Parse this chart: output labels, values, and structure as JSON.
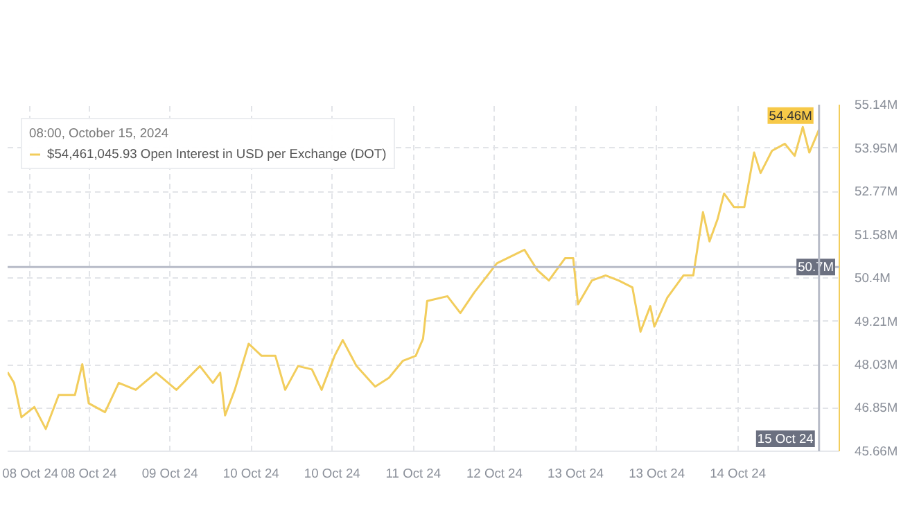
{
  "chart_data": {
    "type": "line",
    "legend_title": "08:00, October 15, 2024",
    "legend": "top left",
    "grid": true,
    "x": [
      "2024-10-08T02:00",
      "2024-10-08T03:23",
      "2024-10-08T04:58",
      "2024-10-08T07:44",
      "2024-10-08T10:11",
      "2024-10-08T12:58",
      "2024-10-08T16:26",
      "2024-10-08T18:01",
      "2024-10-08T19:24",
      "2024-10-08T22:53",
      "2024-10-09T01:50",
      "2024-10-09T05:29",
      "2024-10-09T09:50",
      "2024-10-09T14:11",
      "2024-10-09T19:14",
      "2024-10-09T22:01",
      "2024-10-09T23:35",
      "2024-10-10T00:38",
      "2024-10-10T02:43",
      "2024-10-10T05:41",
      "2024-10-10T08:28",
      "2024-10-10T11:25",
      "2024-10-10T13:31",
      "2024-10-10T16:17",
      "2024-10-10T19:15",
      "2024-10-10T21:20",
      "2024-10-11T00:07",
      "2024-10-11T01:52",
      "2024-10-11T04:49",
      "2024-10-11T08:49",
      "2024-10-11T11:47",
      "2024-10-11T14:44",
      "2024-10-11T17:31",
      "2024-10-11T19:05",
      "2024-10-11T19:58",
      "2024-10-12T00:19",
      "2024-10-12T03:05",
      "2024-10-12T06:03",
      "2024-10-12T10:55",
      "2024-10-12T16:50",
      "2024-10-12T19:37",
      "2024-10-12T22:04",
      "2024-10-13T01:32",
      "2024-10-13T03:17",
      "2024-10-13T04:19",
      "2024-10-13T07:17",
      "2024-10-13T10:14",
      "2024-10-13T13:01",
      "2024-10-13T15:59",
      "2024-10-13T17:43",
      "2024-10-13T19:49",
      "2024-10-13T20:41",
      "2024-10-13T23:28",
      "2024-10-14T02:56",
      "2024-10-14T05:02",
      "2024-10-14T07:07",
      "2024-10-14T08:31",
      "2024-10-14T10:15",
      "2024-10-14T11:38",
      "2024-10-14T13:44",
      "2024-10-14T15:59",
      "2024-10-14T18:05",
      "2024-10-14T19:28",
      "2024-10-14T21:55",
      "2024-10-15T00:41",
      "2024-10-15T02:47",
      "2024-10-15T04:31",
      "2024-10-15T05:55",
      "2024-10-15T08:00"
    ],
    "series": [
      {
        "name": "$54,461,045.93 Open Interest in USD per Exchange (DOT)",
        "color": "#f2cd5c",
        "values": [
          47.82,
          47.53,
          46.59,
          46.87,
          46.27,
          47.2,
          47.2,
          48.04,
          46.97,
          46.73,
          47.53,
          47.34,
          47.81,
          47.34,
          47.99,
          47.53,
          47.81,
          46.64,
          47.34,
          48.6,
          48.27,
          48.27,
          47.34,
          47.99,
          47.9,
          47.34,
          48.27,
          48.7,
          47.99,
          47.43,
          47.67,
          48.13,
          48.27,
          48.74,
          49.77,
          49.9,
          49.44,
          50.0,
          50.8,
          51.17,
          50.61,
          50.33,
          50.94,
          50.94,
          49.68,
          50.33,
          50.47,
          50.33,
          50.14,
          48.93,
          49.63,
          49.07,
          49.86,
          50.47,
          50.47,
          52.2,
          51.4,
          52.01,
          52.71,
          52.34,
          52.34,
          53.83,
          53.27,
          53.88,
          54.07,
          53.74,
          54.53,
          53.83,
          54.46
        ]
      }
    ],
    "xlim": [
      "2024-10-08T02:00",
      "2024-10-15T12:21"
    ],
    "ylim": [
      45.66,
      55.14
    ],
    "xticks": [
      {
        "value": "2024-10-08T06:52",
        "label": "08 Oct 24"
      },
      {
        "value": "2024-10-08T19:24",
        "label": "08 Oct 24"
      },
      {
        "value": "2024-10-09T12:48",
        "label": "09 Oct 24"
      },
      {
        "value": "2024-10-10T06:12",
        "label": "10 Oct 24"
      },
      {
        "value": "2024-10-10T23:36",
        "label": "10 Oct 24"
      },
      {
        "value": "2024-10-11T17:00",
        "label": "11 Oct 24"
      },
      {
        "value": "2024-10-12T10:24",
        "label": "12 Oct 24"
      },
      {
        "value": "2024-10-13T03:48",
        "label": "13 Oct 24"
      },
      {
        "value": "2024-10-13T21:12",
        "label": "13 Oct 24"
      },
      {
        "value": "2024-10-14T14:36",
        "label": "14 Oct 24"
      }
    ],
    "yticks": [
      {
        "value": 45.66,
        "label": "45.66M"
      },
      {
        "value": 46.85,
        "label": "46.85M"
      },
      {
        "value": 48.03,
        "label": "48.03M"
      },
      {
        "value": 49.21,
        "label": "49.21M"
      },
      {
        "value": 50.4,
        "label": "50.4M"
      },
      {
        "value": 51.58,
        "label": "51.58M"
      },
      {
        "value": 52.77,
        "label": "52.77M"
      },
      {
        "value": 53.95,
        "label": "53.95M"
      },
      {
        "value": 55.14,
        "label": "55.14M"
      }
    ],
    "ref_lines": [
      {
        "axis": "y",
        "value": 50.7,
        "label": "50.7M",
        "color": "#b8bcc8"
      },
      {
        "axis": "x",
        "value": "2024-10-15T08:00",
        "label": "15 Oct 24",
        "color": "#b8bcc8"
      }
    ],
    "annotations": [
      {
        "text": "54.46M",
        "x": "2024-10-15T08:00",
        "y": 54.46
      }
    ]
  }
}
